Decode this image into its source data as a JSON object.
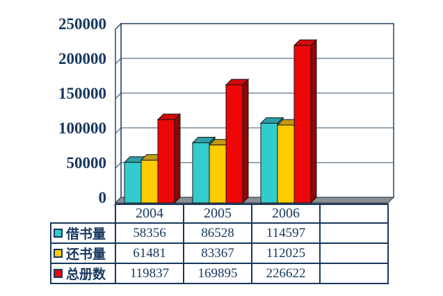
{
  "chart_data": {
    "type": "bar",
    "style": "3d-clustered-column-with-data-table",
    "title": "",
    "xlabel": "",
    "ylabel": "",
    "categories": [
      "2004",
      "2005",
      "2006"
    ],
    "series": [
      {
        "name": "借书量",
        "values": [
          58356,
          86528,
          114597
        ],
        "color": "#33CCCC",
        "color_top": "#2D9FA6",
        "color_side": "#1F878D"
      },
      {
        "name": "还书量",
        "values": [
          61481,
          83367,
          112025
        ],
        "color": "#FFCC00",
        "color_top": "#BF9B16",
        "color_side": "#A3840F"
      },
      {
        "name": "总册数",
        "values": [
          119837,
          169895,
          226622
        ],
        "color": "#EE0707",
        "color_top": "#D40A0A",
        "color_side": "#8F0606"
      }
    ],
    "ylim": [
      0,
      250000
    ],
    "ytick_step": 50000,
    "yticks": [
      "250000",
      "200000",
      "150000",
      "100000",
      "50000",
      "0"
    ],
    "grid": true,
    "legend_position": "data-table-left",
    "has_data_table": true,
    "extra_empty_category_column": true
  },
  "colors": {
    "text": "#17375E",
    "grid": "#31506F",
    "floor": "#8A8F96",
    "floor_shadow": "#555A61",
    "background": "#FFFFFF"
  }
}
